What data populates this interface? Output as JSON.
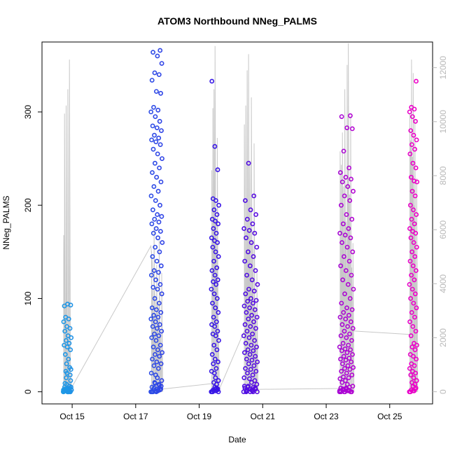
{
  "chart_data": {
    "type": "scatter",
    "title": "ATOM3 Northbound NNeg_PALMS",
    "xlabel": "Date",
    "ylabel": "NNeg_PALMS",
    "x_unit": "day of October",
    "xlim": [
      14.05,
      26.35
    ],
    "ylim": [
      -13,
      375
    ],
    "ylim_right": [
      -450,
      12950
    ],
    "x_ticks": [
      {
        "value": 15,
        "label": "Oct 15"
      },
      {
        "value": 17,
        "label": "Oct 17"
      },
      {
        "value": 19,
        "label": "Oct 19"
      },
      {
        "value": 21,
        "label": "Oct 21"
      },
      {
        "value": 23,
        "label": "Oct 23"
      },
      {
        "value": 25,
        "label": "Oct 25"
      }
    ],
    "y_ticks": [
      {
        "value": 0,
        "label": "0"
      },
      {
        "value": 100,
        "label": "100"
      },
      {
        "value": 200,
        "label": "200"
      },
      {
        "value": 300,
        "label": "300"
      }
    ],
    "y_ticks_right": [
      {
        "value": 0,
        "label": "0"
      },
      {
        "value": 2000,
        "label": "2000"
      },
      {
        "value": 4000,
        "label": "4000"
      },
      {
        "value": 6000,
        "label": "6000"
      },
      {
        "value": 8000,
        "label": "8000"
      },
      {
        "value": 10000,
        "label": "10000"
      },
      {
        "value": 12000,
        "label": "12000"
      }
    ],
    "colors": {
      "secondary_line": "#c8c8c8",
      "right_axis": "#b8b8b8",
      "axis": "#000000",
      "color_start": "#1e9be6",
      "color_mid": "#3a10e6",
      "color_end": "#f000c8"
    },
    "series": [
      {
        "name": "NNeg_PALMS (points, colored by time)",
        "axis": "left",
        "clusters": [
          {
            "x_start": 14.72,
            "x_end": 14.98,
            "values": [
              0,
              1,
              2,
              0,
              3,
              1,
              0,
              2,
              5,
              0,
              1,
              4,
              8,
              0,
              2,
              3,
              12,
              0,
              1,
              6,
              15,
              2,
              0,
              9,
              18,
              20,
              1,
              3,
              22,
              24,
              0,
              5,
              26,
              30,
              2,
              35,
              40,
              45,
              48,
              50,
              52,
              55,
              58,
              60,
              65,
              68,
              70,
              75,
              78,
              80,
              93,
              94,
              92,
              0,
              1,
              2,
              0,
              3,
              0,
              1
            ]
          },
          {
            "x_start": 17.48,
            "x_end": 17.84,
            "values": [
              0,
              1,
              2,
              3,
              0,
              5,
              8,
              10,
              12,
              15,
              0,
              2,
              18,
              20,
              25,
              28,
              30,
              32,
              35,
              38,
              40,
              42,
              45,
              48,
              50,
              55,
              58,
              60,
              62,
              65,
              68,
              70,
              72,
              75,
              78,
              80,
              82,
              85,
              88,
              90,
              95,
              100,
              105,
              110,
              112,
              115,
              120,
              125,
              128,
              130,
              135,
              140,
              145,
              150,
              155,
              160,
              165,
              170,
              172,
              175,
              180,
              182,
              185,
              188,
              190,
              195,
              200,
              205,
              210,
              215,
              220,
              225,
              230,
              235,
              240,
              245,
              250,
              255,
              260,
              265,
              268,
              270,
              272,
              275,
              280,
              283,
              285,
              290,
              295,
              300,
              302,
              305,
              320,
              322,
              334,
              340,
              342,
              352,
              360,
              364,
              366,
              1,
              0,
              2,
              4,
              6,
              3,
              0,
              7,
              9
            ]
          },
          {
            "x_start": 19.38,
            "x_end": 19.62,
            "values": [
              0,
              1,
              2,
              3,
              5,
              0,
              8,
              10,
              12,
              15,
              0,
              2,
              20,
              22,
              25,
              30,
              32,
              35,
              40,
              45,
              50,
              55,
              60,
              62,
              65,
              70,
              72,
              75,
              80,
              85,
              90,
              95,
              100,
              105,
              110,
              115,
              118,
              120,
              125,
              130,
              133,
              140,
              145,
              150,
              155,
              160,
              162,
              165,
              170,
              175,
              180,
              183,
              185,
              190,
              195,
              200,
              205,
              207,
              238,
              263,
              333,
              4,
              1,
              0,
              3
            ]
          },
          {
            "x_start": 20.4,
            "x_end": 20.84,
            "values": [
              0,
              1,
              2,
              3,
              0,
              4,
              5,
              6,
              8,
              10,
              0,
              12,
              14,
              15,
              18,
              20,
              22,
              24,
              25,
              28,
              30,
              32,
              34,
              35,
              38,
              40,
              42,
              44,
              45,
              48,
              50,
              52,
              55,
              58,
              60,
              62,
              65,
              68,
              70,
              72,
              75,
              78,
              80,
              82,
              85,
              88,
              90,
              92,
              95,
              97,
              98,
              100,
              105,
              108,
              110,
              115,
              120,
              125,
              130,
              135,
              140,
              145,
              150,
              155,
              160,
              165,
              170,
              173,
              175,
              180,
              185,
              190,
              195,
              205,
              210,
              245,
              0,
              2,
              1,
              4,
              3,
              6,
              0,
              5
            ]
          },
          {
            "x_start": 23.42,
            "x_end": 23.86,
            "values": [
              0,
              1,
              2,
              0,
              3,
              4,
              5,
              0,
              6,
              8,
              10,
              0,
              12,
              14,
              15,
              16,
              18,
              20,
              22,
              24,
              25,
              26,
              28,
              30,
              32,
              34,
              35,
              36,
              38,
              40,
              42,
              44,
              45,
              46,
              48,
              50,
              52,
              55,
              58,
              60,
              62,
              65,
              68,
              70,
              72,
              75,
              78,
              80,
              82,
              85,
              88,
              90,
              95,
              100,
              105,
              110,
              115,
              120,
              125,
              130,
              135,
              140,
              145,
              150,
              155,
              160,
              165,
              168,
              170,
              175,
              180,
              185,
              190,
              200,
              205,
              210,
              215,
              220,
              225,
              228,
              230,
              235,
              240,
              258,
              282,
              283,
              295,
              296,
              0,
              1,
              2,
              3,
              0,
              4,
              0,
              1,
              2
            ]
          },
          {
            "x_start": 25.62,
            "x_end": 25.86,
            "values": [
              0,
              1,
              2,
              4,
              6,
              0,
              8,
              10,
              12,
              15,
              18,
              20,
              22,
              25,
              28,
              30,
              35,
              38,
              40,
              45,
              48,
              50,
              52,
              60,
              65,
              70,
              75,
              80,
              85,
              90,
              95,
              100,
              105,
              110,
              115,
              120,
              125,
              130,
              135,
              140,
              145,
              150,
              155,
              160,
              165,
              170,
              172,
              175,
              180,
              185,
              190,
              195,
              200,
              210,
              215,
              225,
              226,
              230,
              240,
              245,
              255,
              260,
              265,
              270,
              275,
              280,
              290,
              295,
              300,
              303,
              305,
              333,
              1,
              0,
              3
            ]
          }
        ]
      },
      {
        "name": "secondary (right axis, grey line)",
        "axis": "right",
        "clusters": [
          {
            "x_start": 14.72,
            "x_end": 14.98,
            "peaks": [
              5800,
              10300,
              3200,
              10600,
              2400,
              11200,
              1600,
              12300,
              900,
              400
            ]
          },
          {
            "x_start": 17.48,
            "x_end": 17.84,
            "peaks": [
              5200,
              3800,
              6100,
              2900,
              4700,
              3300,
              5600,
              2100,
              4400
            ]
          },
          {
            "x_start": 19.38,
            "x_end": 19.62,
            "peaks": [
              8200,
              10500,
              11200,
              12800,
              6400,
              9400,
              2500
            ]
          },
          {
            "x_start": 20.4,
            "x_end": 20.84,
            "peaks": [
              9900,
              10600,
              11900,
              12500,
              8400,
              10900,
              5600,
              9200,
              3100,
              4400
            ]
          },
          {
            "x_start": 23.42,
            "x_end": 23.86,
            "peaks": [
              8900,
              8400,
              9600,
              7600,
              11200,
              6300,
              12100,
              12900,
              7300,
              10200,
              4600,
              5500
            ]
          },
          {
            "x_start": 25.62,
            "x_end": 25.86,
            "peaks": [
              10300,
              9300,
              12300,
              8700,
              11800,
              6900,
              10100,
              4200,
              7900
            ]
          }
        ],
        "connector": [
          {
            "x": 14.98,
            "y": 150
          },
          {
            "x": 17.48,
            "y": 5400
          },
          {
            "x": 17.84,
            "y": 100
          },
          {
            "x": 19.38,
            "y": 300
          },
          {
            "x": 19.62,
            "y": 60
          },
          {
            "x": 20.4,
            "y": 2200
          },
          {
            "x": 20.84,
            "y": 90
          },
          {
            "x": 23.42,
            "y": 120
          },
          {
            "x": 23.86,
            "y": 2250
          },
          {
            "x": 25.62,
            "y": 2120
          }
        ]
      }
    ]
  }
}
